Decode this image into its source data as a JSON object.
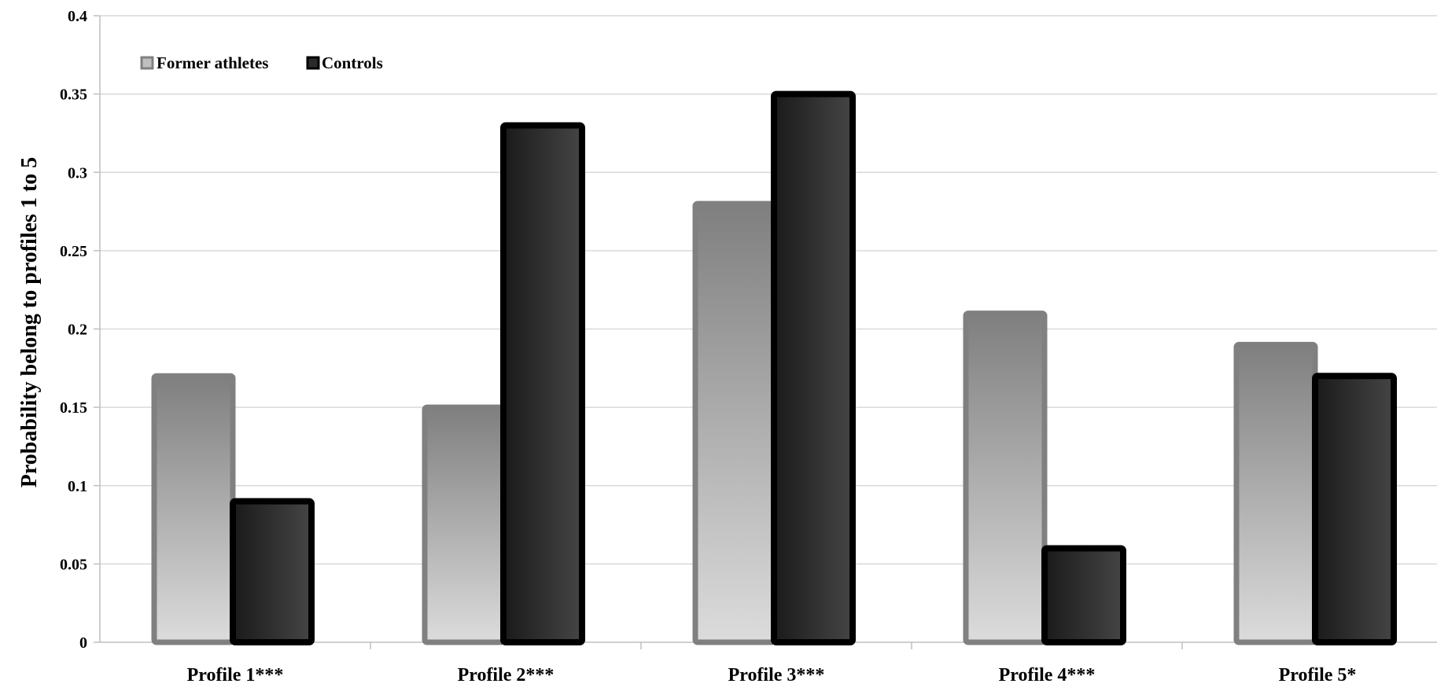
{
  "chart_data": {
    "type": "bar",
    "categories": [
      "Profile 1***",
      "Profile 2***",
      "Profile 3***",
      "Profile 4***",
      "Profile 5*"
    ],
    "series": [
      {
        "name": "Former athletes",
        "values": [
          0.17,
          0.15,
          0.28,
          0.21,
          0.19
        ]
      },
      {
        "name": "Controls",
        "values": [
          0.09,
          0.33,
          0.35,
          0.06,
          0.17
        ]
      }
    ],
    "title": "",
    "xlabel": "",
    "ylabel": "Probability belong to profiles 1 to 5",
    "ylim": [
      0,
      0.4
    ],
    "yticks": [
      "0",
      "0.05",
      "0.1",
      "0.15",
      "0.2",
      "0.25",
      "0.3",
      "0.35",
      "0.4"
    ],
    "grid": true,
    "legend": "top-left",
    "colors": {
      "former_top": "#7f7f7f",
      "former_bottom": "#d9d9d9",
      "former_border": "#808080",
      "controls_fill_left": "#1f1f1f",
      "controls_fill_right": "#404040",
      "controls_border": "#000000",
      "gridline": "#d9d9d9",
      "axis": "#bfbfbf"
    }
  }
}
